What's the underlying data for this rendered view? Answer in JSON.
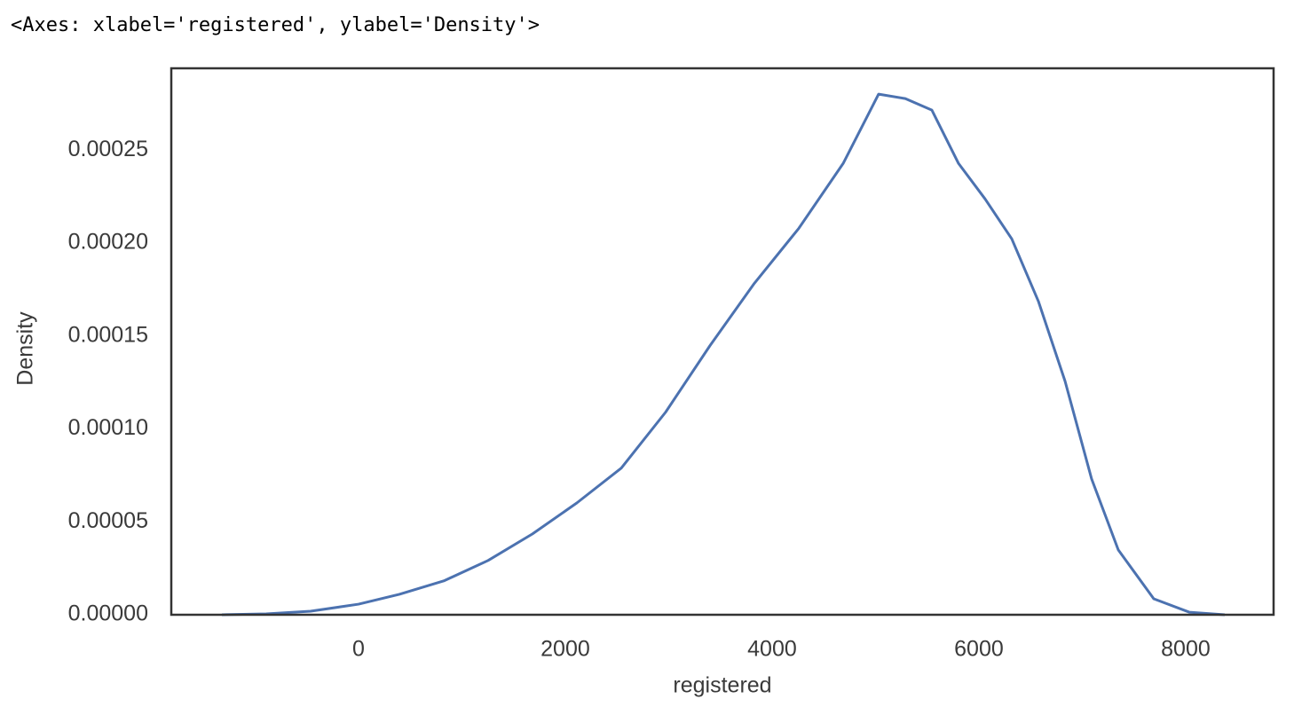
{
  "output_text": "<Axes: xlabel='registered', ylabel='Density'>",
  "chart_data": {
    "type": "line",
    "xlabel": "registered",
    "ylabel": "Density",
    "x": [
      -1322,
      -893,
      -464,
      0,
      395,
      824,
      1253,
      1682,
      2112,
      2541,
      2970,
      3399,
      3828,
      4258,
      4687,
      5030,
      5288,
      5545,
      5803,
      6060,
      6318,
      6575,
      6833,
      7090,
      7348,
      7691,
      8034,
      8378
    ],
    "series": [
      {
        "color": "#4c72b0",
        "values": [
          0,
          5e-07,
          1.9e-06,
          5.7e-06,
          1.1e-05,
          1.82e-05,
          2.92e-05,
          4.35e-05,
          6.02e-05,
          7.89e-05,
          0.000109,
          0.0001448,
          0.0001783,
          0.0002079,
          0.0002428,
          0.0002801,
          0.0002777,
          0.0002715,
          0.0002428,
          0.0002237,
          0.0002022,
          0.0001687,
          0.0001257,
          7.31e-05,
          3.49e-05,
          8.6e-06,
          1.4e-06,
          0
        ]
      }
    ],
    "xlim": [
      -1811,
      8850
    ],
    "ylim": [
      0,
      0.000294
    ],
    "xticks": [
      0,
      2000,
      4000,
      6000,
      8000
    ],
    "yticks": [
      {
        "value": 0,
        "label": "0.00000"
      },
      {
        "value": 5e-05,
        "label": "0.00005"
      },
      {
        "value": 0.0001,
        "label": "0.00010"
      },
      {
        "value": 0.00015,
        "label": "0.00015"
      },
      {
        "value": 0.0002,
        "label": "0.00020"
      },
      {
        "value": 0.00025,
        "label": "0.00025"
      }
    ],
    "grid": false
  }
}
